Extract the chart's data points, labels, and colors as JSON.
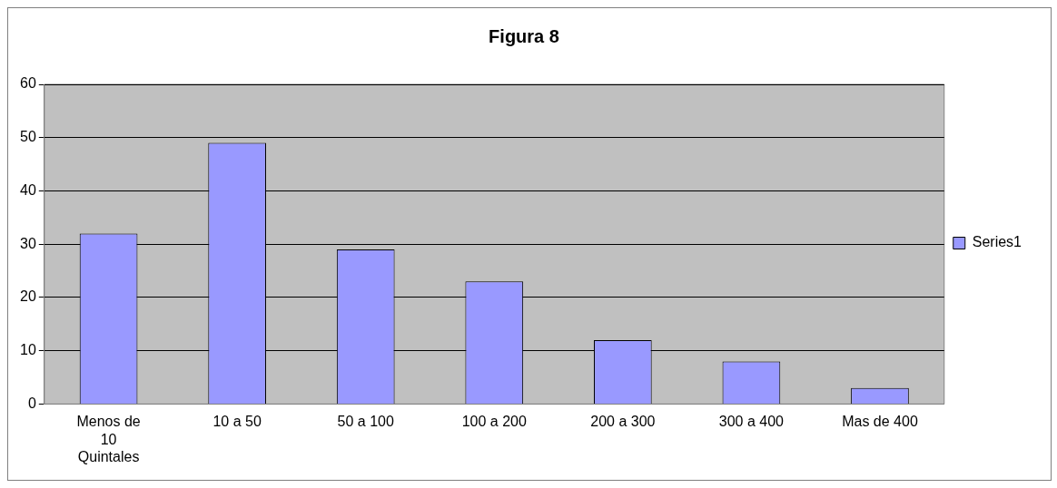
{
  "chart_data": {
    "type": "bar",
    "title": "Figura 8",
    "categories": [
      "Menos de 10 Quintales",
      "10 a 50",
      "50 a 100",
      "100 a 200",
      "200 a 300",
      "300 a 400",
      "Mas de 400"
    ],
    "series": [
      {
        "name": "Series1",
        "color": "#9999ff",
        "values": [
          32,
          49,
          29,
          23,
          12,
          8,
          3
        ]
      }
    ],
    "ylim": [
      0,
      60
    ],
    "yticks": [
      0,
      10,
      20,
      30,
      40,
      50,
      60
    ],
    "grid": "y",
    "legend": "right"
  }
}
